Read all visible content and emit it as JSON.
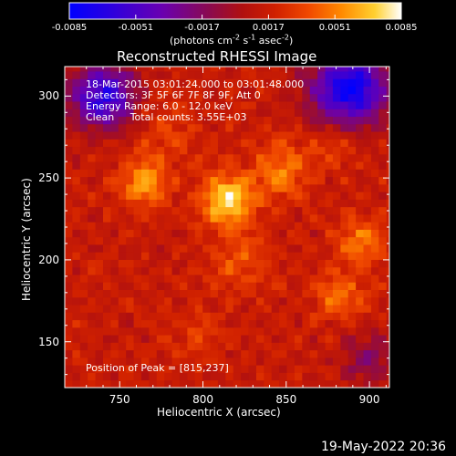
{
  "chart_data": {
    "type": "heatmap",
    "title": "Reconstructed RHESSI Image",
    "xlabel": "Heliocentric X (arcsec)",
    "ylabel": "Heliocentric Y (arcsec)",
    "xlim": [
      717,
      912
    ],
    "ylim": [
      122,
      318
    ],
    "x_ticks": [
      750,
      800,
      850,
      900
    ],
    "y_ticks": [
      150,
      200,
      250,
      300
    ],
    "colorbar": {
      "ticks": [
        "-0.0085",
        "-0.0051",
        "-0.0017",
        "0.0017",
        "0.0051",
        "0.0085"
      ],
      "range": [
        -0.0085,
        0.0085
      ],
      "unit_prefix": "(photons cm",
      "unit_exp1": "-2",
      "unit_mid1": " s",
      "unit_exp2": "-1",
      "unit_mid2": " asec",
      "unit_exp3": "-2",
      "unit_suffix": ")"
    },
    "annotations": [
      "18-Mar-2015 03:01:24.000 to 03:01:48.000",
      "Detectors: 3F 5F 6F 7F 8F 9F, Att 0",
      "Energy Range: 6.0 - 12.0 keV",
      "Clean     Total counts: 3.55E+03"
    ],
    "peak_label": "Position of Peak = [815,237]",
    "peak": [
      815,
      237
    ],
    "sources": [
      {
        "x": 815,
        "y": 237,
        "peak": 0.0085,
        "sigma": 11
      },
      {
        "x": 765,
        "y": 247,
        "peak": 0.0064,
        "sigma": 10
      },
      {
        "x": 848,
        "y": 255,
        "peak": 0.0055,
        "sigma": 12
      },
      {
        "x": 895,
        "y": 211,
        "peak": 0.0052,
        "sigma": 10
      },
      {
        "x": 882,
        "y": 178,
        "peak": 0.0046,
        "sigma": 11
      },
      {
        "x": 880,
        "y": 270,
        "peak": 0.0036,
        "sigma": 10
      },
      {
        "x": 775,
        "y": 278,
        "peak": 0.0034,
        "sigma": 14
      },
      {
        "x": 823,
        "y": 200,
        "peak": 0.004,
        "sigma": 13
      },
      {
        "x": 795,
        "y": 155,
        "peak": 0.003,
        "sigma": 12
      }
    ],
    "dim_regions": [
      {
        "x": 740,
        "y": 300,
        "value": -0.006,
        "sigma": 14
      },
      {
        "x": 888,
        "y": 305,
        "value": -0.0075,
        "sigma": 16
      },
      {
        "x": 900,
        "y": 140,
        "value": -0.001,
        "sigma": 12
      }
    ]
  },
  "footer": {
    "timestamp": "19-May-2022 20:36"
  }
}
